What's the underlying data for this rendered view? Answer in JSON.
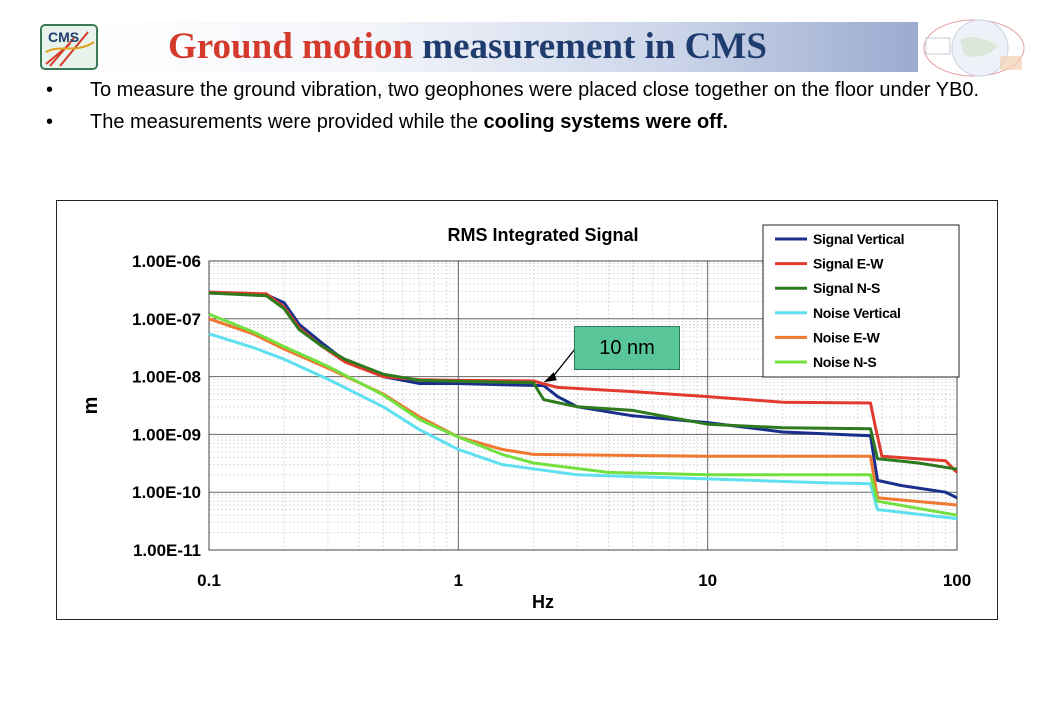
{
  "slide": {
    "title_red": "Ground motion",
    "title_blue": "measurement in CMS",
    "logo_left_text": "CMS",
    "bullets": [
      {
        "text": "To measure the ground vibration, two geophones were placed close together on the floor under YB0."
      },
      {
        "pre": "The measurements were provided while the ",
        "bold": "cooling systems were off."
      }
    ],
    "bullet_glyph": "•"
  },
  "colors": {
    "title_red": "#d33a2c",
    "title_blue": "#1f3c6e",
    "callout": "#59c69a"
  },
  "chart_data": {
    "type": "line",
    "title": "RMS Integrated Signal",
    "xlabel": "Hz",
    "ylabel": "m",
    "x_scale": "log",
    "y_scale": "log",
    "xlim": [
      0.1,
      100
    ],
    "ylim": [
      1e-11,
      1e-06
    ],
    "x_ticks": [
      {
        "v": 0.1,
        "label": "0.1"
      },
      {
        "v": 1,
        "label": "1"
      },
      {
        "v": 10,
        "label": "10"
      },
      {
        "v": 100,
        "label": "100"
      }
    ],
    "y_ticks": [
      {
        "v": 1e-06,
        "label": "1.00E-06"
      },
      {
        "v": 1e-07,
        "label": "1.00E-07"
      },
      {
        "v": 1e-08,
        "label": "1.00E-08"
      },
      {
        "v": 1e-09,
        "label": "1.00E-09"
      },
      {
        "v": 1e-10,
        "label": "1.00E-10"
      },
      {
        "v": 1e-11,
        "label": "1.00E-11"
      }
    ],
    "grid": true,
    "legend_position": "top-right",
    "annotation": {
      "text": "10 nm",
      "x": 2.2,
      "y": 8e-09
    },
    "series": [
      {
        "name": "Signal Vertical",
        "color": "#1a2f8c",
        "points": [
          [
            0.1,
            2.8e-07
          ],
          [
            0.17,
            2.6e-07
          ],
          [
            0.2,
            1.9e-07
          ],
          [
            0.23,
            8e-08
          ],
          [
            0.28,
            4e-08
          ],
          [
            0.35,
            1.9e-08
          ],
          [
            0.5,
            1e-08
          ],
          [
            0.7,
            7.6e-09
          ],
          [
            1,
            7.6e-09
          ],
          [
            1.5,
            7.2e-09
          ],
          [
            2.2,
            7e-09
          ],
          [
            2.5,
            4.5e-09
          ],
          [
            3,
            3e-09
          ],
          [
            5,
            2.1e-09
          ],
          [
            10,
            1.6e-09
          ],
          [
            20,
            1.1e-09
          ],
          [
            45,
            9.5e-10
          ],
          [
            48,
            1.6e-10
          ],
          [
            60,
            1.3e-10
          ],
          [
            90,
            1e-10
          ],
          [
            100,
            8e-11
          ]
        ]
      },
      {
        "name": "Signal E-W",
        "color": "#e23a2e",
        "points": [
          [
            0.1,
            2.9e-07
          ],
          [
            0.17,
            2.7e-07
          ],
          [
            0.2,
            1.6e-07
          ],
          [
            0.23,
            7e-08
          ],
          [
            0.28,
            3.5e-08
          ],
          [
            0.35,
            1.8e-08
          ],
          [
            0.5,
            1e-08
          ],
          [
            0.7,
            8.8e-09
          ],
          [
            1,
            8.6e-09
          ],
          [
            2,
            8.4e-09
          ],
          [
            2.5,
            6.5e-09
          ],
          [
            5,
            5.5e-09
          ],
          [
            10,
            4.5e-09
          ],
          [
            20,
            3.6e-09
          ],
          [
            45,
            3.5e-09
          ],
          [
            47,
            1.4e-09
          ],
          [
            50,
            4.2e-10
          ],
          [
            90,
            3.5e-10
          ],
          [
            100,
            2.2e-10
          ]
        ]
      },
      {
        "name": "Signal N-S",
        "color": "#2e7a1e",
        "points": [
          [
            0.1,
            2.8e-07
          ],
          [
            0.17,
            2.5e-07
          ],
          [
            0.2,
            1.5e-07
          ],
          [
            0.23,
            6.5e-08
          ],
          [
            0.28,
            3.5e-08
          ],
          [
            0.35,
            2e-08
          ],
          [
            0.5,
            1.1e-08
          ],
          [
            0.7,
            8.6e-09
          ],
          [
            1,
            8.3e-09
          ],
          [
            2,
            7.8e-09
          ],
          [
            2.2,
            4e-09
          ],
          [
            3,
            3e-09
          ],
          [
            5,
            2.6e-09
          ],
          [
            10,
            1.5e-09
          ],
          [
            20,
            1.3e-09
          ],
          [
            45,
            1.25e-09
          ],
          [
            48,
            3.8e-10
          ],
          [
            70,
            3.2e-10
          ],
          [
            100,
            2.5e-10
          ]
        ]
      },
      {
        "name": "Noise Vertical",
        "color": "#5fe0f0",
        "points": [
          [
            0.1,
            5.5e-08
          ],
          [
            0.15,
            3.2e-08
          ],
          [
            0.2,
            2e-08
          ],
          [
            0.3,
            9e-09
          ],
          [
            0.5,
            3e-09
          ],
          [
            0.7,
            1.2e-09
          ],
          [
            1,
            5.5e-10
          ],
          [
            1.5,
            3e-10
          ],
          [
            3,
            2e-10
          ],
          [
            10,
            1.7e-10
          ],
          [
            30,
            1.45e-10
          ],
          [
            45,
            1.4e-10
          ],
          [
            48,
            5e-11
          ],
          [
            100,
            3.5e-11
          ]
        ]
      },
      {
        "name": "Noise E-W",
        "color": "#f07830",
        "points": [
          [
            0.1,
            1e-07
          ],
          [
            0.15,
            5.5e-08
          ],
          [
            0.2,
            3e-08
          ],
          [
            0.3,
            1.4e-08
          ],
          [
            0.5,
            5e-09
          ],
          [
            0.7,
            2e-09
          ],
          [
            1,
            9e-10
          ],
          [
            1.5,
            5.5e-10
          ],
          [
            2,
            4.5e-10
          ],
          [
            10,
            4.2e-10
          ],
          [
            45,
            4.2e-10
          ],
          [
            48,
            8e-11
          ],
          [
            100,
            6e-11
          ]
        ]
      },
      {
        "name": "Noise N-S",
        "color": "#74e040",
        "points": [
          [
            0.1,
            1.2e-07
          ],
          [
            0.15,
            6e-08
          ],
          [
            0.2,
            3.3e-08
          ],
          [
            0.3,
            1.5e-08
          ],
          [
            0.5,
            4.8e-09
          ],
          [
            0.7,
            1.8e-09
          ],
          [
            1,
            9e-10
          ],
          [
            1.5,
            4.5e-10
          ],
          [
            2,
            3.2e-10
          ],
          [
            4,
            2.2e-10
          ],
          [
            10,
            2e-10
          ],
          [
            45,
            2e-10
          ],
          [
            48,
            7e-11
          ],
          [
            100,
            4e-11
          ]
        ]
      }
    ]
  }
}
